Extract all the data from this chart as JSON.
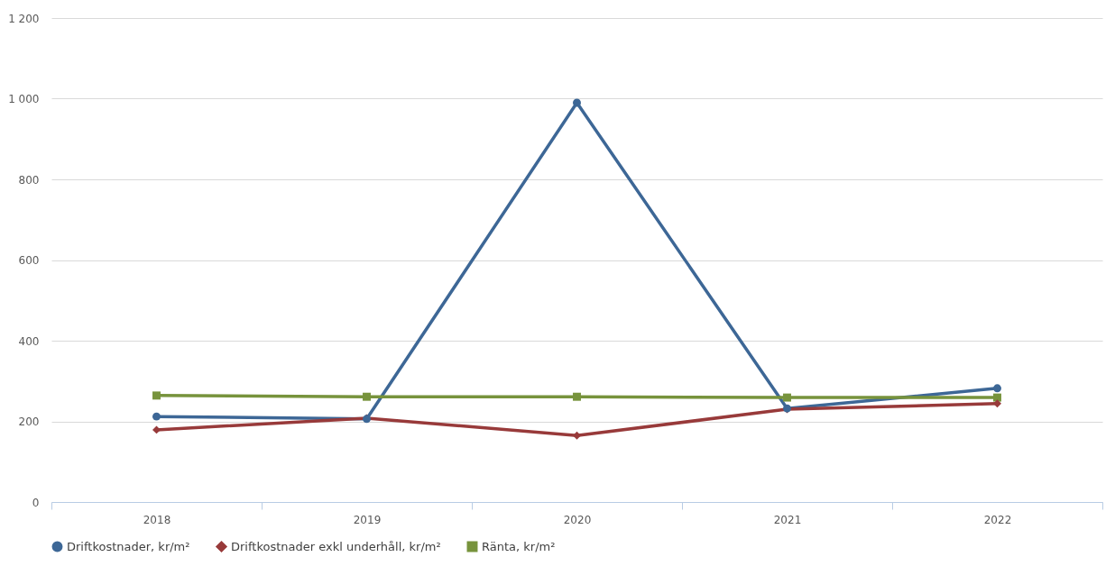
{
  "chart_data": {
    "type": "line",
    "categories": [
      "2018",
      "2019",
      "2020",
      "2021",
      "2022"
    ],
    "series": [
      {
        "name": "Driftkostnader, kr/m²",
        "color": "#3d6796",
        "marker": "circle",
        "values": [
          212,
          206,
          990,
          232,
          282
        ]
      },
      {
        "name": "Driftkostnader exkl underhåll, kr/m²",
        "color": "#983a3a",
        "marker": "diamond",
        "values": [
          179,
          208,
          165,
          230,
          244
        ]
      },
      {
        "name": "Ränta, kr/m²",
        "color": "#77933c",
        "marker": "square",
        "values": [
          264,
          261,
          261,
          259,
          259
        ]
      }
    ],
    "ylim": [
      0,
      1200
    ],
    "yticks": [
      0,
      200,
      400,
      600,
      800,
      {
        "value": 1000,
        "label": "1 000"
      },
      {
        "value": 1200,
        "label": "1 200"
      }
    ],
    "grid": "y",
    "legend": "bottom",
    "line_style": "solid"
  }
}
